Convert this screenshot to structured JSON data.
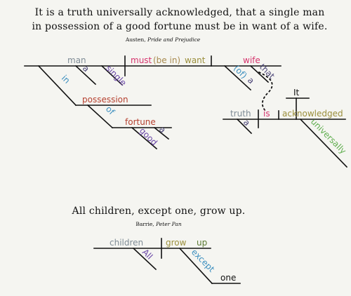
{
  "colors": {
    "subject": "#7f8c96",
    "verb": "#d6346d",
    "auxiliary": "#a88a4f",
    "object": "#d6346d",
    "article": "#4c4678",
    "adjective": "#6a47a7",
    "preposition": "#3c8fbf",
    "noun_in_phrase": "#b5402f",
    "adverb": "#5fae4e",
    "predicate": "#9b8f3c",
    "plain": "#111111"
  },
  "diagram1": {
    "quote_line1": "It is a truth universally acknowledged, that a single man",
    "quote_line2": "in possession of a good fortune must be in want of a wife.",
    "citation_author": "Austen, ",
    "citation_title": "Pride and Prejudice",
    "words": {
      "man": "man",
      "must": "must",
      "be_in": "(be in)",
      "want": "want",
      "wife": "wife",
      "a_man": "a",
      "single": "single",
      "in": "in",
      "possession": "possession",
      "of_fortune": "of",
      "fortune": "fortune",
      "a_fortune": "a",
      "good": "good",
      "of_wife": "(of)",
      "a_wife": "a",
      "that": "that",
      "it": "It",
      "truth": "truth",
      "is": "is",
      "acknowledged": "acknowledged",
      "a_truth": "a",
      "universally": "universally"
    }
  },
  "diagram2": {
    "quote": "All children, except one, grow up.",
    "citation_author": "Barrie, ",
    "citation_title": "Peter Pan",
    "words": {
      "children": "children",
      "grow": "grow",
      "up": "up",
      "all": "All",
      "except": "except",
      "one": "one"
    }
  }
}
